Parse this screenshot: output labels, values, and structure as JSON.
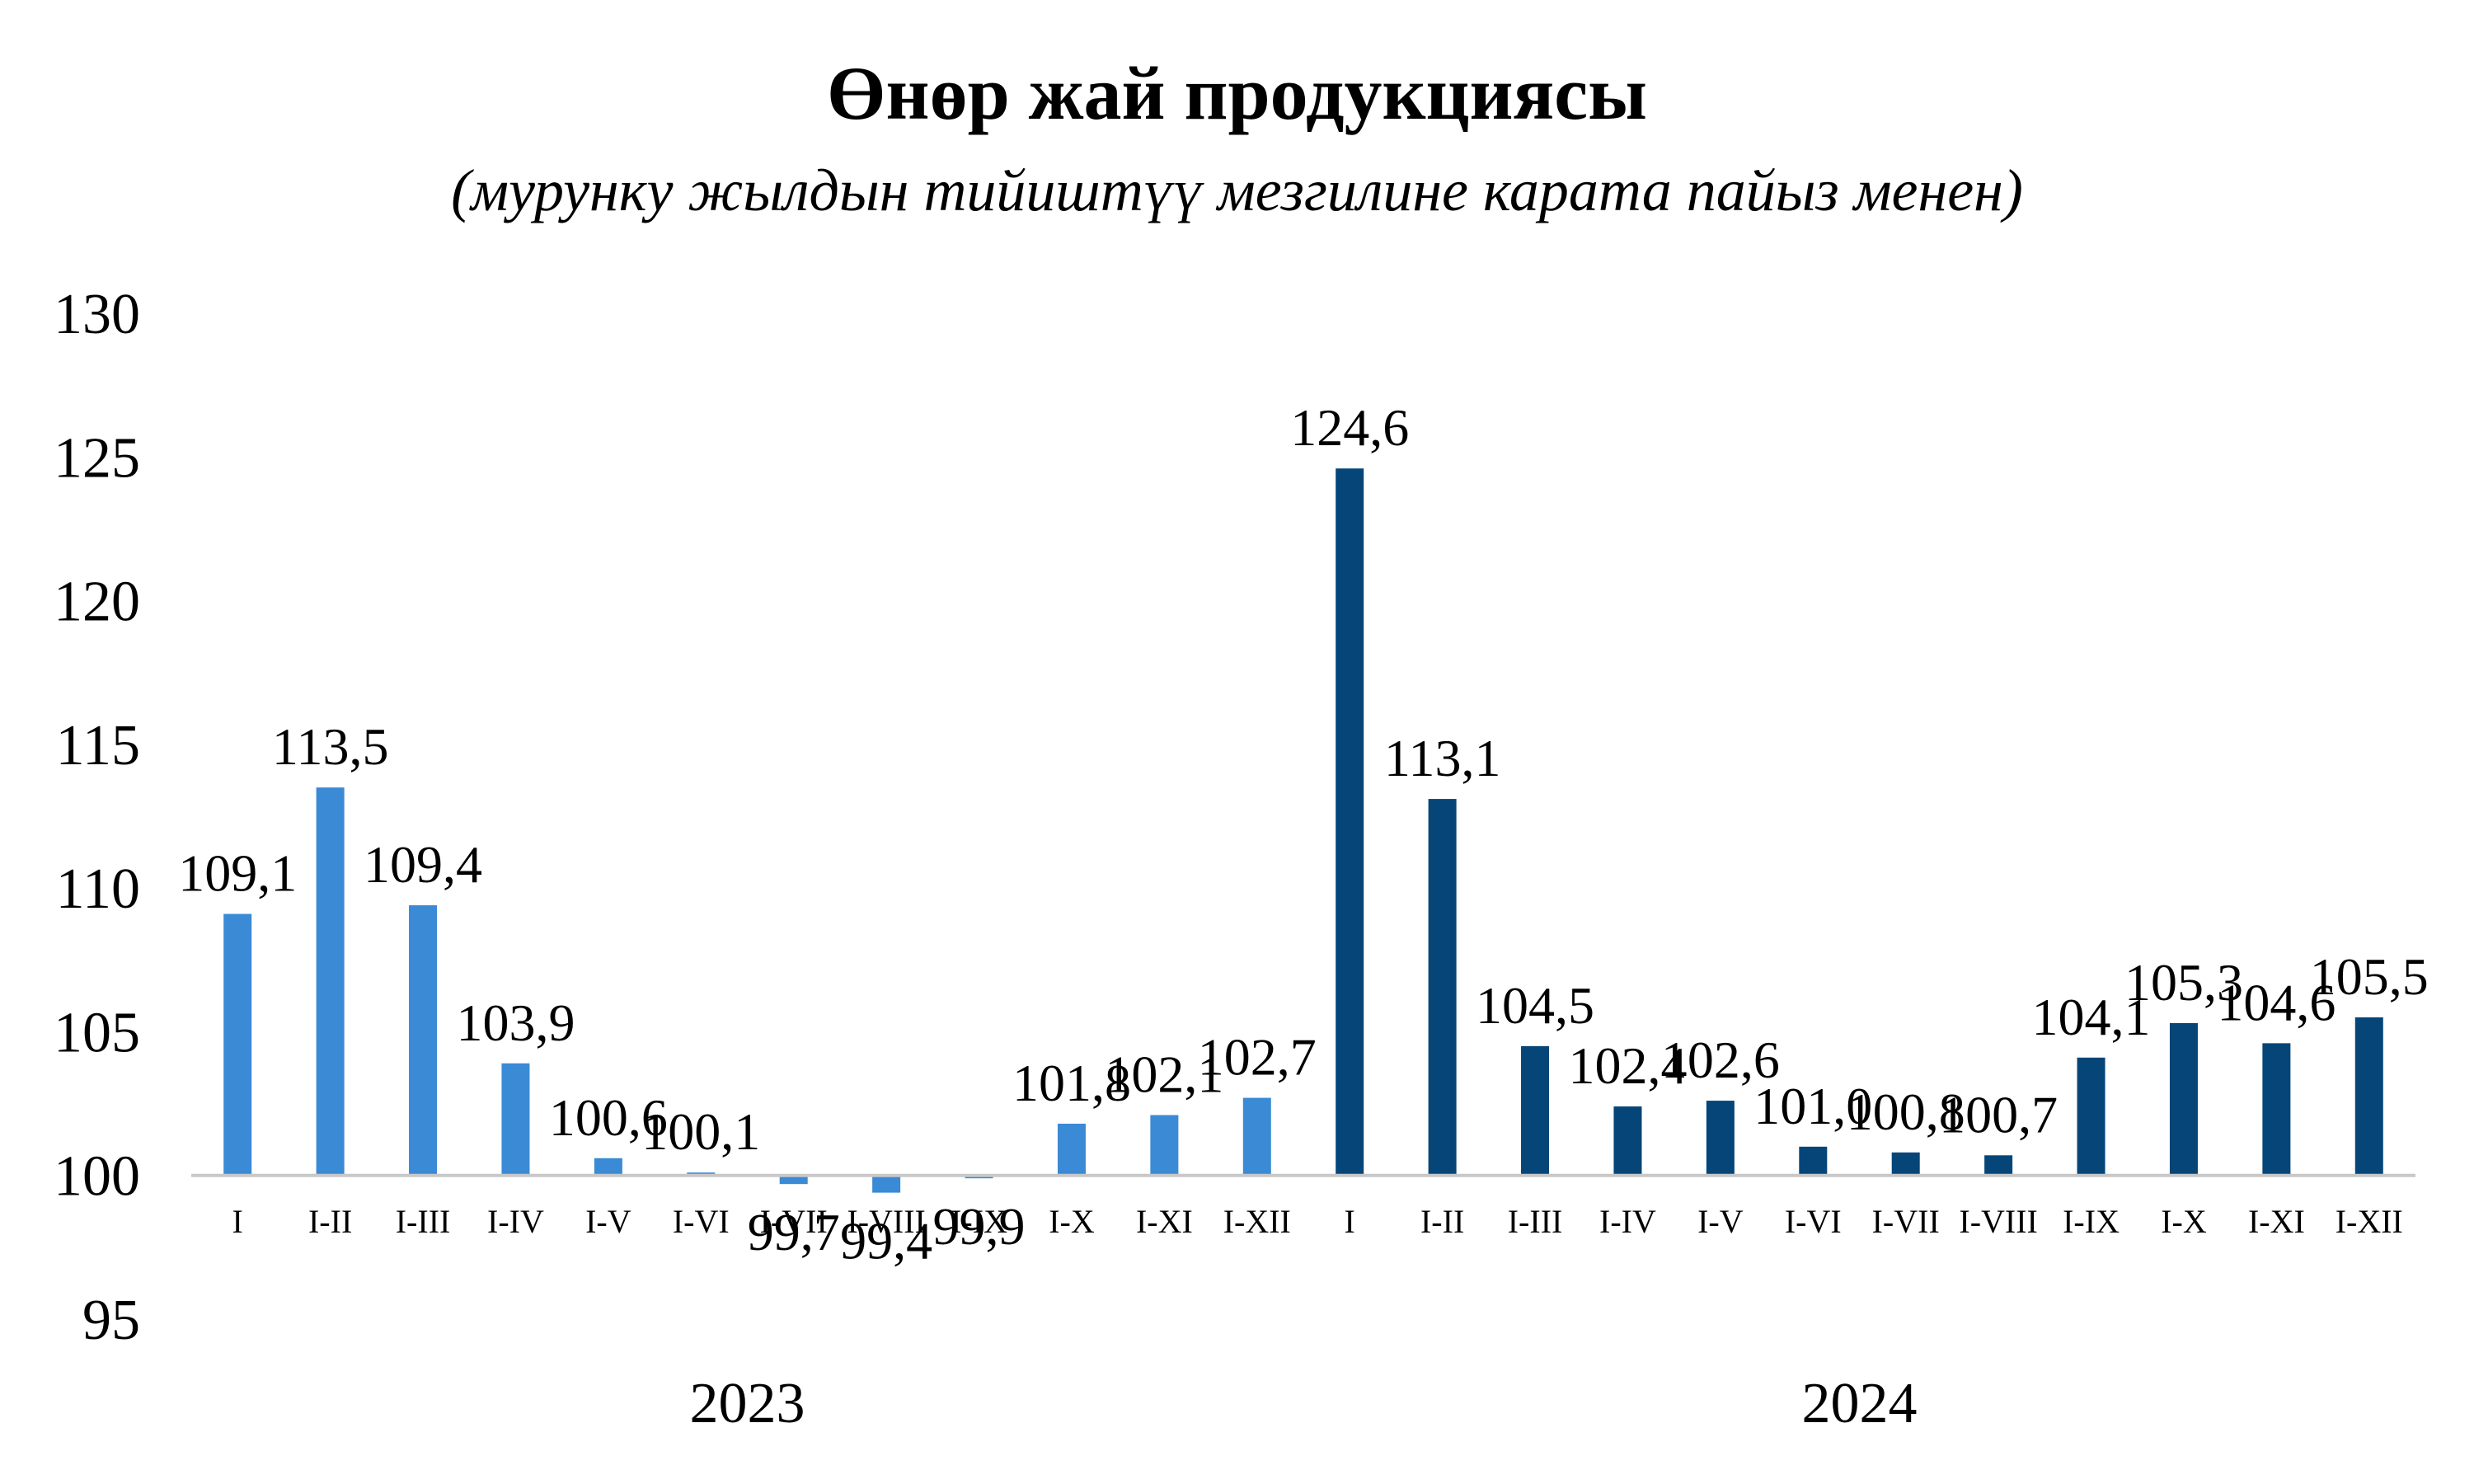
{
  "chart_data": {
    "type": "bar",
    "title": "Өнөр жай продукциясы",
    "subtitle": "(мурунку жылдын тийиштүү  мезгилине карата пайыз менен)",
    "ylim": [
      95,
      130
    ],
    "yticks": [
      "95",
      "100",
      "105",
      "110",
      "115",
      "120",
      "125",
      "130"
    ],
    "baseline": 100,
    "grid": false,
    "legend": "none",
    "groups": [
      {
        "name": "2023",
        "color": "#3a8ad6",
        "categories": [
          "I",
          "I-II",
          "I-III",
          "I-IV",
          "I-V",
          "I-VI",
          "I-VII",
          "I-VIII",
          "I-IX",
          "I-X",
          "I-XI",
          "I-XII"
        ],
        "values": [
          109.1,
          113.5,
          109.4,
          103.9,
          100.6,
          100.1,
          99.7,
          99.4,
          99.9,
          101.8,
          102.1,
          102.7
        ],
        "labels": [
          "109,1",
          "113,5",
          "109,4",
          "103,9",
          "100,6",
          "100,1",
          "99,7",
          "99,4",
          "99,9",
          "101,8",
          "102,1",
          "102,7"
        ]
      },
      {
        "name": "2024",
        "color": "#064578",
        "categories": [
          "I",
          "I-II",
          "I-III",
          "I-IV",
          "I-V",
          "I-VI",
          "I-VII",
          "I-VIII",
          "I-IX",
          "I-X",
          "I-XI",
          "I-XII"
        ],
        "values": [
          124.6,
          113.1,
          104.5,
          102.4,
          102.6,
          101.0,
          100.8,
          100.7,
          104.1,
          105.3,
          104.6,
          105.5
        ],
        "labels": [
          "124,6",
          "113,1",
          "104,5",
          "102,4",
          "102,6",
          "101,0",
          "100,8",
          "100,7",
          "104,1",
          "105,3",
          "104,6",
          "105,5"
        ]
      }
    ]
  }
}
